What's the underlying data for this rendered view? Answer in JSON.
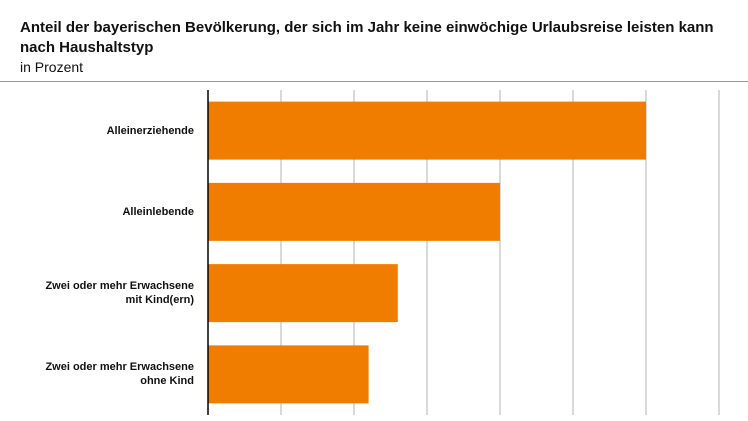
{
  "chart_data": {
    "type": "bar",
    "orientation": "horizontal",
    "title": "Anteil der bayerischen Bevölkerung, der sich im Jahr keine einwöchige Urlaubsreise leisten kann nach Haushaltstyp",
    "subtitle": "in Prozent",
    "categories": [
      "Alleinerziehende",
      "Alleinlebende",
      "Zwei oder mehr Erwachsene\nmit Kind(ern)",
      "Zwei oder mehr Erwachsene\nohne Kind"
    ],
    "values": [
      30,
      20,
      13,
      11
    ],
    "xlim": [
      0,
      35
    ],
    "grid": true,
    "bar_color": "#f07d00"
  }
}
